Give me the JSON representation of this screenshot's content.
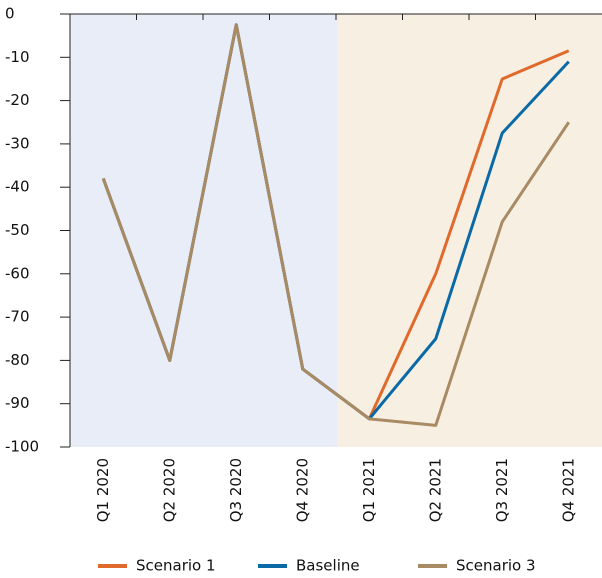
{
  "chart_data": {
    "type": "line",
    "categories": [
      "Q1 2020",
      "Q2 2020",
      "Q3 2020",
      "Q4 2020",
      "Q1 2021",
      "Q2 2021",
      "Q3 2021",
      "Q4 2021"
    ],
    "series": [
      {
        "name": "Scenario 1",
        "color": "#e06a2b",
        "values": [
          -38,
          -80,
          -2.5,
          -82,
          -93.5,
          -60,
          -15,
          -8.5
        ]
      },
      {
        "name": "Baseline",
        "color": "#0a6aa6",
        "values": [
          -38,
          -80,
          -2.5,
          -82,
          -93.5,
          -75,
          -27.5,
          -11
        ]
      },
      {
        "name": "Scenario 3",
        "color": "#a88a63",
        "values": [
          -38,
          -80,
          -2.5,
          -82,
          -93.5,
          -95,
          -48,
          -25
        ]
      }
    ],
    "ylim": [
      -100,
      0
    ],
    "yticks": [
      0,
      -10,
      -20,
      -30,
      -40,
      -50,
      -60,
      -70,
      -80,
      -90,
      -100
    ],
    "grid": false
  }
}
